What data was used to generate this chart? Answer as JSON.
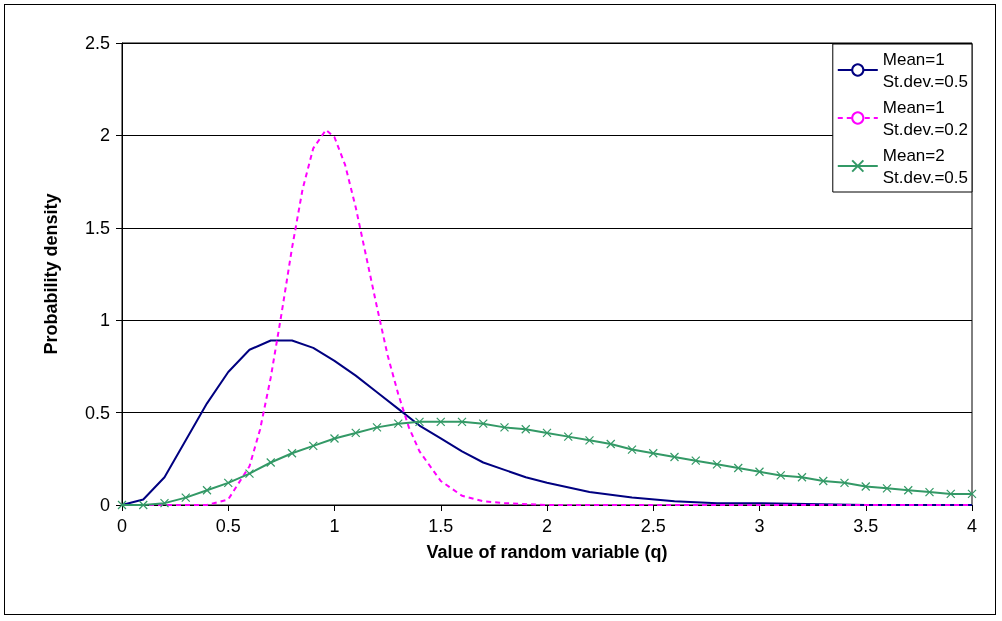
{
  "chart_data": {
    "type": "line",
    "xlabel": "Value of random variable (q)",
    "ylabel": "Probability density",
    "xlim": [
      0,
      4
    ],
    "xticks": [
      0,
      0.5,
      1,
      1.5,
      2,
      2.5,
      3,
      3.5,
      4
    ],
    "ylim": [
      0,
      2.5
    ],
    "yticks": [
      0,
      0.5,
      1,
      1.5,
      2,
      2.5
    ],
    "grid": "y",
    "legend": "top right",
    "series": [
      {
        "name": "Mean=1 St.dev.=0.5",
        "color": "#000080",
        "line_style": "solid",
        "marker": "none",
        "x": [
          0,
          0.1,
          0.2,
          0.3,
          0.4,
          0.5,
          0.6,
          0.7,
          0.8,
          0.9,
          1,
          1.1,
          1.2,
          1.3,
          1.4,
          1.5,
          1.6,
          1.7,
          1.8,
          1.9,
          2,
          2.2,
          2.4,
          2.6,
          2.8,
          3,
          3.5,
          4
        ],
        "values": [
          0,
          0.03,
          0.15,
          0.35,
          0.55,
          0.72,
          0.84,
          0.89,
          0.89,
          0.85,
          0.78,
          0.7,
          0.61,
          0.52,
          0.43,
          0.36,
          0.29,
          0.23,
          0.19,
          0.15,
          0.12,
          0.07,
          0.04,
          0.02,
          0.01,
          0.01,
          0,
          0
        ]
      },
      {
        "name": "Mean=1 St.dev.=0.2",
        "color": "#ff00ff",
        "line_style": "dashed",
        "marker": "none",
        "x": [
          0,
          0.3,
          0.4,
          0.5,
          0.6,
          0.65,
          0.7,
          0.75,
          0.8,
          0.85,
          0.9,
          0.96,
          1,
          1.05,
          1.1,
          1.15,
          1.2,
          1.25,
          1.3,
          1.35,
          1.4,
          1.5,
          1.6,
          1.7,
          1.8,
          2,
          2.5,
          3,
          3.5,
          4
        ],
        "values": [
          0,
          0,
          0,
          0.03,
          0.21,
          0.41,
          0.69,
          1.03,
          1.39,
          1.71,
          1.93,
          2.03,
          1.99,
          1.84,
          1.61,
          1.34,
          1.07,
          0.81,
          0.6,
          0.42,
          0.29,
          0.13,
          0.05,
          0.02,
          0.01,
          0,
          0,
          0,
          0,
          0
        ]
      },
      {
        "name": "Mean=2 St.dev.=0.5",
        "color": "#339966",
        "line_style": "solid",
        "marker": "cross",
        "x": [
          0,
          0.1,
          0.2,
          0.3,
          0.4,
          0.5,
          0.6,
          0.7,
          0.8,
          0.9,
          1,
          1.1,
          1.2,
          1.3,
          1.4,
          1.5,
          1.6,
          1.7,
          1.8,
          1.9,
          2,
          2.1,
          2.2,
          2.3,
          2.4,
          2.5,
          2.6,
          2.7,
          2.8,
          2.9,
          3,
          3.1,
          3.2,
          3.3,
          3.4,
          3.5,
          3.6,
          3.7,
          3.8,
          3.9,
          4
        ],
        "values": [
          0,
          0,
          0.01,
          0.04,
          0.08,
          0.12,
          0.17,
          0.23,
          0.28,
          0.32,
          0.36,
          0.39,
          0.42,
          0.44,
          0.45,
          0.45,
          0.45,
          0.44,
          0.42,
          0.41,
          0.39,
          0.37,
          0.35,
          0.33,
          0.3,
          0.28,
          0.26,
          0.24,
          0.22,
          0.2,
          0.18,
          0.16,
          0.15,
          0.13,
          0.12,
          0.1,
          0.09,
          0.08,
          0.07,
          0.06,
          0.06
        ]
      }
    ]
  }
}
